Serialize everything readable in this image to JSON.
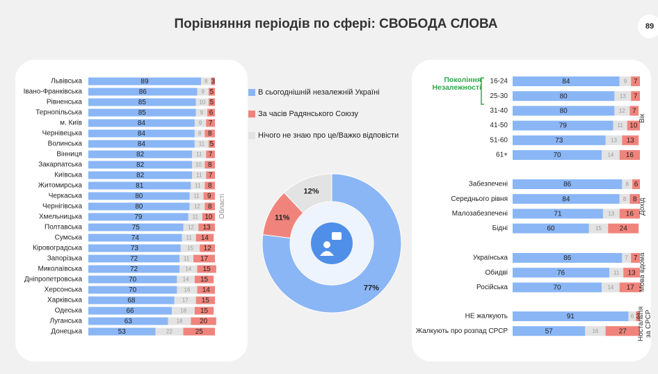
{
  "title": "Порівняння періодів по сфері: СВОБОДА СЛОВА",
  "page_number": "89",
  "chart_data": [
    {
      "type": "bar",
      "stacked": true,
      "orientation": "horizontal",
      "axis_label": "Області",
      "categories": [
        "Львівська",
        "Івано-Франківська",
        "Рівненська",
        "Тернопільська",
        "м. Київ",
        "Чернівецька",
        "Волинська",
        "Вінниця",
        "Закарпатська",
        "Київська",
        "Житомирська",
        "Черкаська",
        "Чернігівська",
        "Хмельницька",
        "Полтавська",
        "Сумська",
        "Кіровоградська",
        "Запорізька",
        "Миколаївська",
        "Дніпропетровська",
        "Херсонська",
        "Харківська",
        "Одеська",
        "Луганська",
        "Донецька"
      ],
      "series": [
        {
          "color": "#8ab6f5",
          "values": [
            89,
            86,
            85,
            85,
            84,
            84,
            84,
            82,
            82,
            82,
            81,
            80,
            80,
            79,
            75,
            74,
            73,
            72,
            72,
            70,
            70,
            68,
            66,
            63,
            53
          ]
        },
        {
          "color": "#e3e3e3",
          "values": [
            8,
            9,
            10,
            9,
            9,
            8,
            11,
            11,
            10,
            11,
            11,
            11,
            12,
            11,
            12,
            11,
            15,
            11,
            14,
            14,
            16,
            17,
            18,
            18,
            22
          ]
        },
        {
          "color": "#f0847c",
          "values": [
            3,
            5,
            5,
            6,
            7,
            8,
            5,
            7,
            8,
            7,
            8,
            9,
            8,
            10,
            13,
            14,
            12,
            17,
            15,
            15,
            14,
            15,
            15,
            20,
            25
          ]
        }
      ]
    },
    {
      "type": "pie",
      "donut": true,
      "categories": [
        "В сьогоднішній незалежній Україні",
        "За часів Радянського Союзу",
        "Нічого не знаю про це/Важко відповісти"
      ],
      "values": [
        77,
        11,
        12
      ],
      "value_labels": [
        "77%",
        "11%",
        "12%"
      ],
      "colors": [
        "#8ab6f5",
        "#f0847c",
        "#e3e3e3"
      ]
    },
    {
      "type": "bar",
      "stacked": true,
      "orientation": "horizontal",
      "group_label": "Вік",
      "annotation": "Покоління Незалежності",
      "categories": [
        "16-24",
        "25-30",
        "31-40",
        "41-50",
        "51-60",
        "61+"
      ],
      "series": [
        {
          "color": "#8ab6f5",
          "values": [
            84,
            80,
            80,
            79,
            73,
            70
          ]
        },
        {
          "color": "#e3e3e3",
          "values": [
            9,
            13,
            12,
            11,
            13,
            14
          ]
        },
        {
          "color": "#f0847c",
          "values": [
            7,
            7,
            7,
            10,
            13,
            16
          ]
        }
      ]
    },
    {
      "type": "bar",
      "stacked": true,
      "orientation": "horizontal",
      "group_label": "Дохід",
      "categories": [
        "Забезпечені",
        "Середнього рівня",
        "Малозабезпечені",
        "Бідні"
      ],
      "series": [
        {
          "color": "#8ab6f5",
          "values": [
            86,
            84,
            71,
            60
          ]
        },
        {
          "color": "#e3e3e3",
          "values": [
            8,
            8,
            13,
            15
          ]
        },
        {
          "color": "#f0847c",
          "values": [
            6,
            8,
            16,
            24
          ]
        }
      ]
    },
    {
      "type": "bar",
      "stacked": true,
      "orientation": "horizontal",
      "group_label": "Мова вдома",
      "categories": [
        "Українська",
        "Обидві",
        "Російська"
      ],
      "series": [
        {
          "color": "#8ab6f5",
          "values": [
            86,
            76,
            70
          ]
        },
        {
          "color": "#e3e3e3",
          "values": [
            7,
            11,
            14
          ]
        },
        {
          "color": "#f0847c",
          "values": [
            7,
            13,
            17
          ]
        }
      ]
    },
    {
      "type": "bar",
      "stacked": true,
      "orientation": "horizontal",
      "group_label": "Ностальгія за СРСР",
      "categories": [
        "НЕ жалкують",
        "Жалкують про розпад СРСР"
      ],
      "series": [
        {
          "color": "#8ab6f5",
          "values": [
            91,
            57
          ]
        },
        {
          "color": "#e3e3e3",
          "values": [
            6,
            16
          ]
        },
        {
          "color": "#f0847c",
          "values": [
            3,
            27
          ]
        }
      ]
    }
  ]
}
